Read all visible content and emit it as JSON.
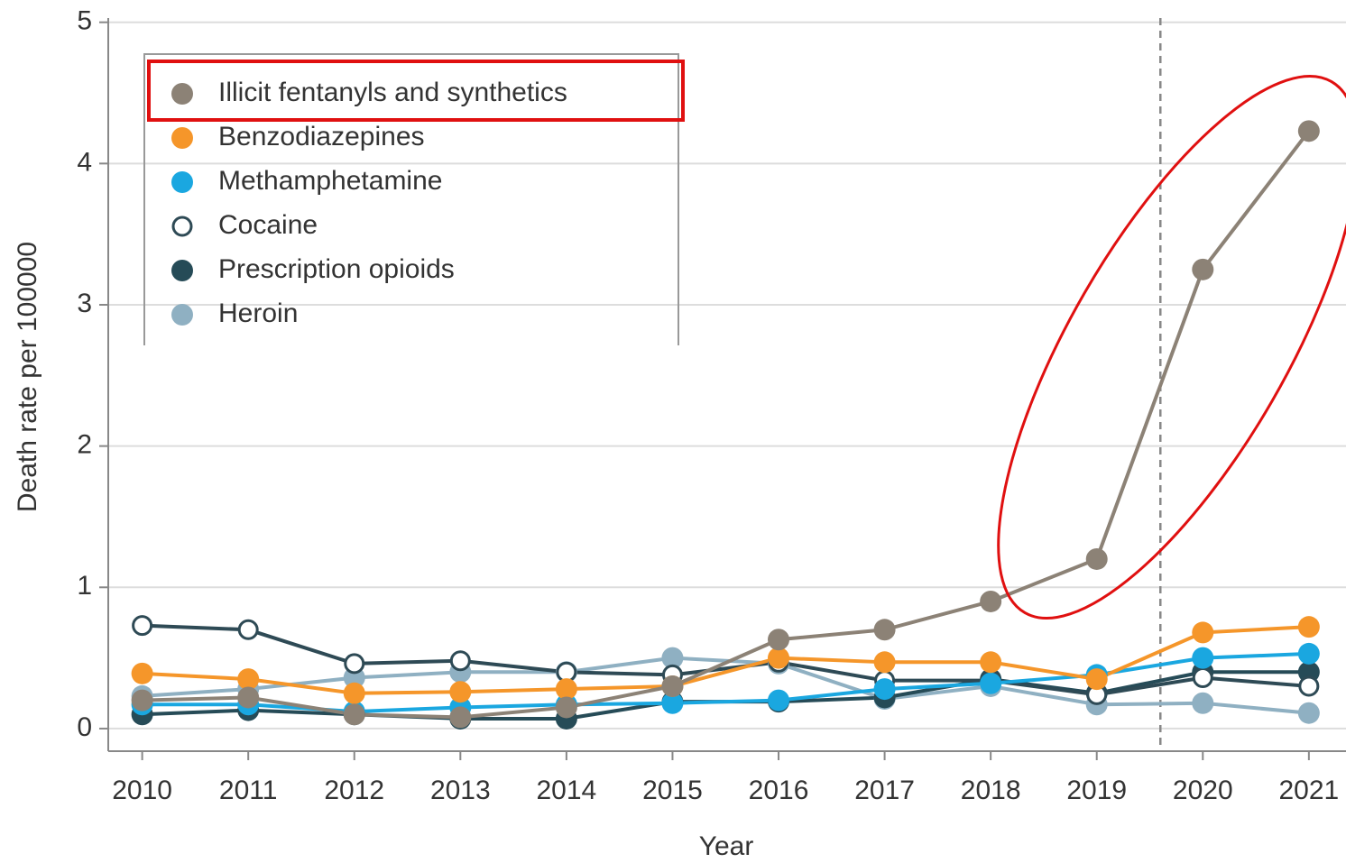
{
  "chart_data": {
    "type": "line",
    "xlabel": "Year",
    "ylabel": "Death rate per 100000",
    "x": [
      2010,
      2011,
      2012,
      2013,
      2014,
      2015,
      2016,
      2017,
      2018,
      2019,
      2020,
      2021
    ],
    "xlim": [
      2009.68,
      2021.35
    ],
    "xticks": [
      2010,
      2011,
      2012,
      2013,
      2014,
      2015,
      2016,
      2017,
      2018,
      2019,
      2020,
      2021
    ],
    "ylim": [
      -0.16,
      5.03
    ],
    "yticks": [
      0,
      1,
      2,
      3,
      4,
      5
    ],
    "grid": true,
    "legend": "upper left",
    "reference_line_x": 2019.6,
    "series": [
      {
        "name": "Illicit fentanyls and synthetics",
        "color": "#8c8276",
        "values": [
          0.2,
          0.22,
          0.1,
          0.08,
          0.15,
          0.3,
          0.63,
          0.7,
          0.9,
          1.2,
          3.25,
          4.23
        ]
      },
      {
        "name": "Benzodiazepines",
        "color": "#f5962a",
        "values": [
          0.39,
          0.35,
          0.25,
          0.26,
          0.28,
          0.3,
          0.5,
          0.47,
          0.47,
          0.35,
          0.68,
          0.72
        ]
      },
      {
        "name": "Methamphetamine",
        "color": "#1aa7e0",
        "values": [
          0.17,
          0.17,
          0.12,
          0.15,
          0.17,
          0.18,
          0.2,
          0.28,
          0.32,
          0.38,
          0.5,
          0.53
        ]
      },
      {
        "name": "Cocaine",
        "color": "#2e4a55",
        "marker": "open",
        "values": [
          0.73,
          0.7,
          0.46,
          0.48,
          0.4,
          0.38,
          0.47,
          0.34,
          0.34,
          0.24,
          0.36,
          0.3
        ]
      },
      {
        "name": "Prescription opioids",
        "color": "#264b57",
        "values": [
          0.1,
          0.13,
          0.1,
          0.07,
          0.07,
          0.19,
          0.19,
          0.22,
          0.35,
          0.25,
          0.4,
          0.4
        ]
      },
      {
        "name": "Heroin",
        "color": "#8fb0c2",
        "values": [
          0.23,
          0.28,
          0.36,
          0.4,
          0.4,
          0.5,
          0.46,
          0.21,
          0.3,
          0.17,
          0.18,
          0.11
        ]
      }
    ]
  }
}
